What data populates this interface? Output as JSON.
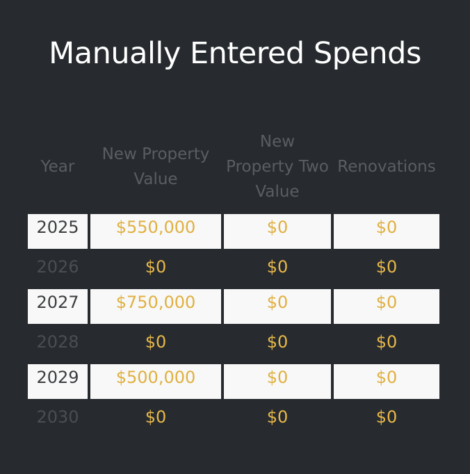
{
  "title": "Manually Entered Spends",
  "headers": {
    "year": "Year",
    "new_property_value": "New Property Value",
    "new_property_two_value": "New Property Two Value",
    "renovations": "Renovations"
  },
  "rows": [
    {
      "year": "2025",
      "new_property_value": "$550,000",
      "new_property_two_value": "$0",
      "renovations": "$0",
      "editable": true
    },
    {
      "year": "2026",
      "new_property_value": "$0",
      "new_property_two_value": "$0",
      "renovations": "$0",
      "editable": false
    },
    {
      "year": "2027",
      "new_property_value": "$750,000",
      "new_property_two_value": "$0",
      "renovations": "$0",
      "editable": true
    },
    {
      "year": "2028",
      "new_property_value": "$0",
      "new_property_two_value": "$0",
      "renovations": "$0",
      "editable": false
    },
    {
      "year": "2029",
      "new_property_value": "$500,000",
      "new_property_two_value": "$0",
      "renovations": "$0",
      "editable": true
    },
    {
      "year": "2030",
      "new_property_value": "$0",
      "new_property_two_value": "$0",
      "renovations": "$0",
      "editable": false
    }
  ],
  "colors": {
    "background": "#272b2f",
    "accent_value": "#e0b040",
    "editable_cell": "#f8f8f8",
    "header_text": "#5a5e62"
  }
}
